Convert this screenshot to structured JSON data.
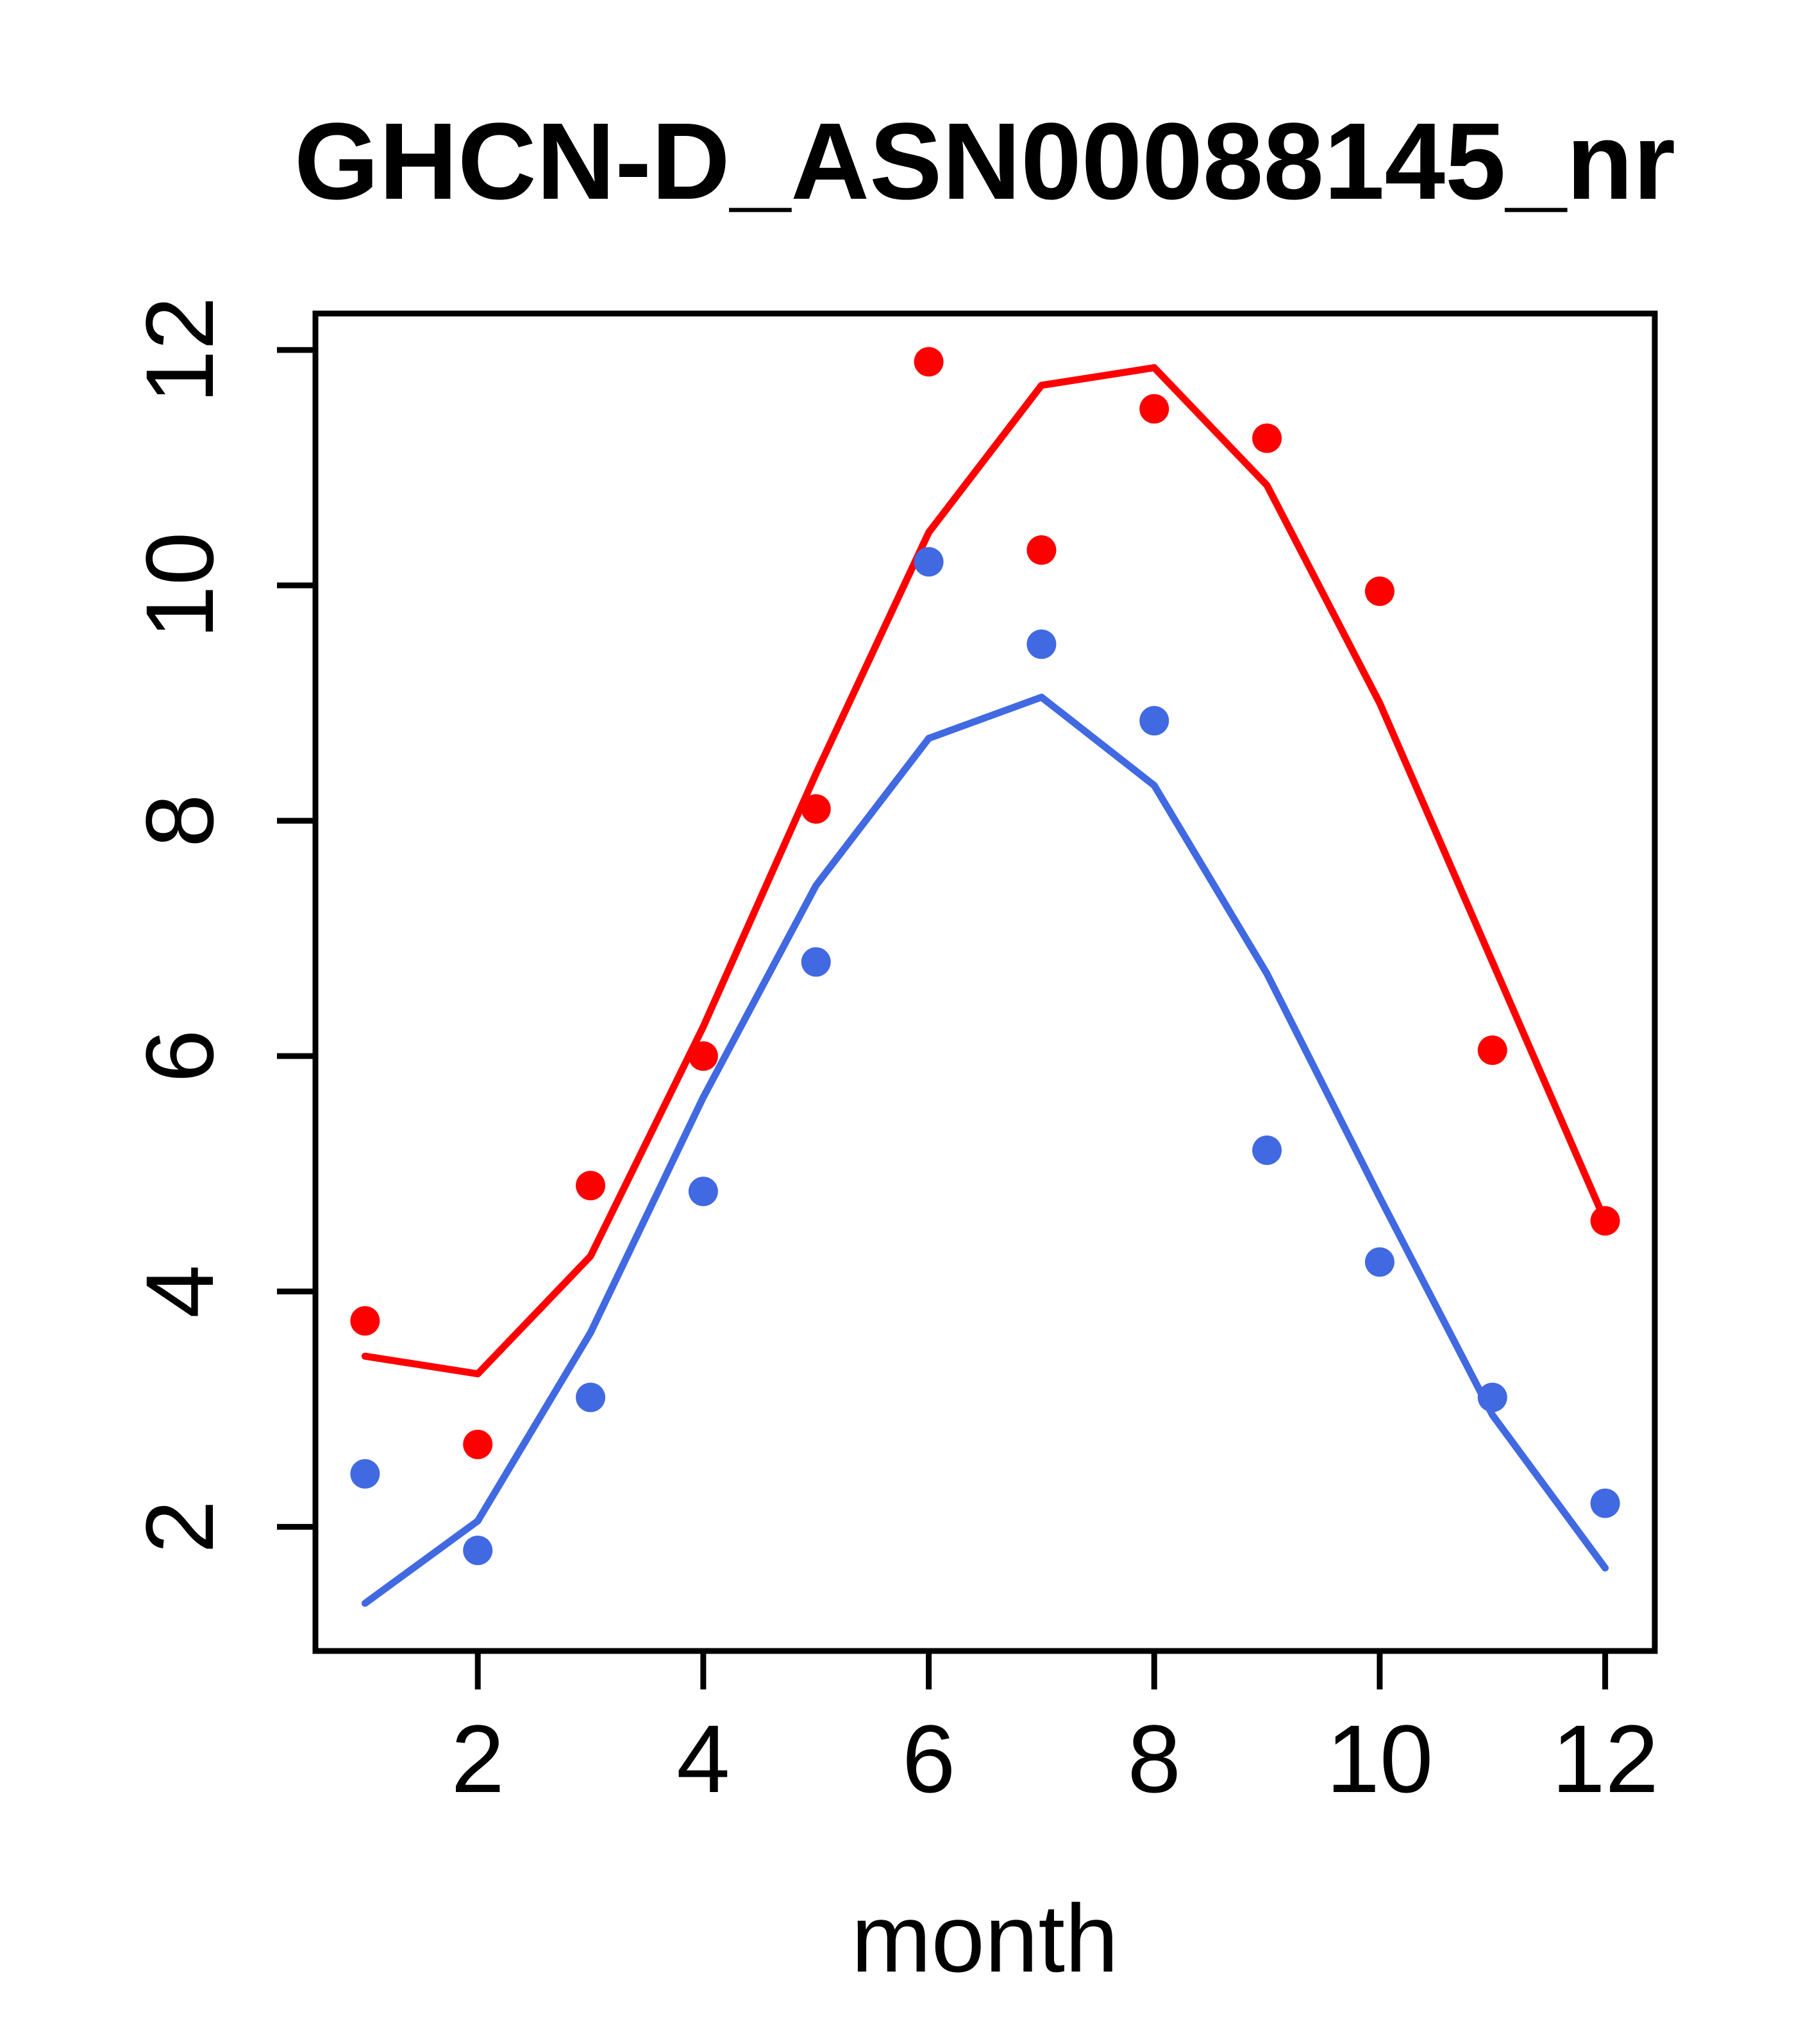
{
  "title": "GHCN-D_ASN00088145_nr",
  "chart_data": {
    "type": "scatter",
    "title": "GHCN-D_ASN00088145_nr",
    "xlabel": "month",
    "ylabel": "",
    "x": [
      1,
      2,
      3,
      4,
      5,
      6,
      7,
      8,
      9,
      10,
      11,
      12
    ],
    "x_ticks": [
      2,
      4,
      6,
      8,
      10,
      12
    ],
    "y_ticks": [
      2,
      4,
      6,
      8,
      10,
      12
    ],
    "xlim": [
      0.56,
      12.44
    ],
    "ylim": [
      0.945,
      12.31
    ],
    "grid": "off",
    "legend": "none",
    "series": [
      {
        "name": "red-points",
        "kind": "points",
        "color": "#ff0000",
        "values": [
          3.75,
          2.7,
          4.9,
          6.0,
          8.1,
          11.9,
          10.3,
          11.5,
          11.25,
          9.95,
          6.05,
          4.6
        ]
      },
      {
        "name": "red-smooth-line",
        "kind": "line",
        "color": "#ff0000",
        "values": [
          3.45,
          3.3,
          4.3,
          6.25,
          8.4,
          10.45,
          11.7,
          11.85,
          10.85,
          9.0,
          6.8,
          4.6
        ]
      },
      {
        "name": "blue-points",
        "kind": "points",
        "color": "#4169e1",
        "values": [
          2.45,
          1.8,
          3.1,
          4.85,
          6.8,
          10.2,
          9.5,
          8.85,
          5.2,
          4.25,
          3.1,
          2.2
        ]
      },
      {
        "name": "blue-smooth-line",
        "kind": "line",
        "color": "#4169e1",
        "values": [
          1.35,
          2.05,
          3.65,
          5.65,
          7.45,
          8.7,
          9.05,
          8.3,
          6.7,
          4.8,
          2.95,
          1.65
        ]
      }
    ],
    "axis_color": "#000000",
    "background_color": "#ffffff"
  }
}
